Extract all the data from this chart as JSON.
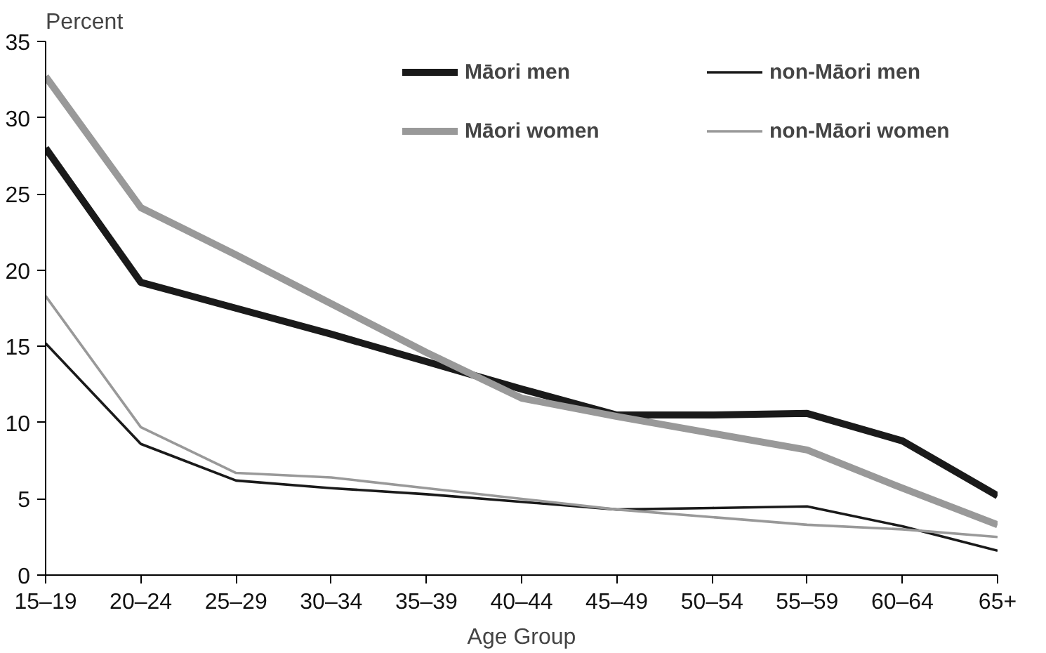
{
  "chart_data": {
    "type": "line",
    "xlabel": "Age Group",
    "ylabel": "Percent",
    "categories": [
      "15–19",
      "20–24",
      "25–29",
      "30–34",
      "35–39",
      "40–44",
      "45–49",
      "50–54",
      "55–59",
      "60–64",
      "65+"
    ],
    "ylim": [
      0,
      35
    ],
    "yticks": [
      0,
      5,
      10,
      15,
      20,
      25,
      30,
      35
    ],
    "grid": false,
    "legend": "top right",
    "marker": "none",
    "series": [
      {
        "name": "Māori men",
        "color": "#1a1a1a",
        "values": [
          28.0,
          19.2,
          17.5,
          15.8,
          14.0,
          12.2,
          10.5,
          10.5,
          10.6,
          8.8,
          5.2
        ]
      },
      {
        "name": "Māori women",
        "color": "#999999",
        "values": [
          32.7,
          24.1,
          21.0,
          17.8,
          14.6,
          11.6,
          10.4,
          9.3,
          8.2,
          5.7,
          3.3
        ]
      },
      {
        "name": "non-Māori men",
        "color": "#1a1a1a",
        "values": [
          15.2,
          8.6,
          6.2,
          5.7,
          5.3,
          4.8,
          4.3,
          4.4,
          4.5,
          3.2,
          1.6
        ]
      },
      {
        "name": "non-Māori women",
        "color": "#999999",
        "values": [
          18.3,
          9.7,
          6.7,
          6.4,
          5.7,
          5.0,
          4.3,
          3.8,
          3.3,
          3.0,
          2.5
        ]
      }
    ]
  }
}
